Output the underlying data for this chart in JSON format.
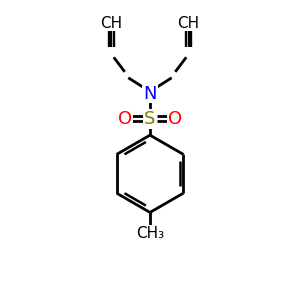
{
  "bg_color": "#ffffff",
  "atom_colors": {
    "N": "#0000ff",
    "S": "#808000",
    "O": "#ff0000",
    "C": "#000000",
    "H": "#000000"
  },
  "bond_color": "#000000",
  "bond_lw": 2.0,
  "figsize": [
    3.0,
    3.0
  ],
  "dpi": 100,
  "xlim": [
    0,
    10
  ],
  "ylim": [
    0,
    10
  ]
}
